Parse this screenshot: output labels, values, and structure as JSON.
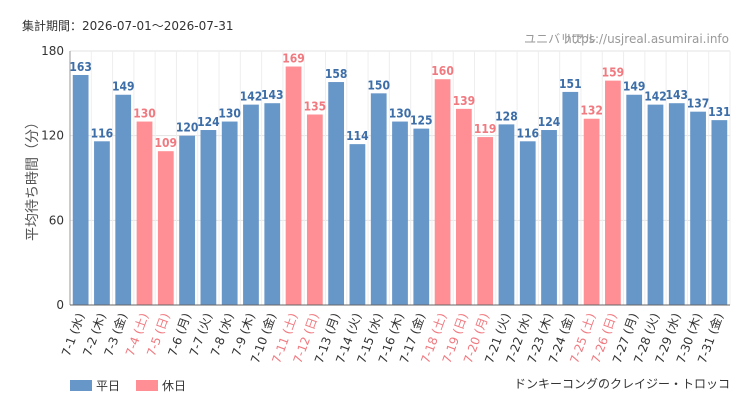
{
  "header": {
    "period": "集計期間：2026-07-01～2026-07-31",
    "site_name": "ユニバリアル",
    "site_url": "https://usjreal.asumirai.info"
  },
  "attraction": "ドンキーコングのクレイジー・トロッコ",
  "colors": {
    "weekday": "#6796c8",
    "holiday": "#ff8f94",
    "holiday_text": "#f07a80",
    "weekday_text": "#3d6ea8"
  },
  "chart_data": {
    "type": "bar",
    "ylabel": "平均待ち時間（分）",
    "ylim": [
      0,
      180
    ],
    "yticks": [
      0,
      60,
      120,
      180
    ],
    "grid": true,
    "legend_position": "bottom-left",
    "legend": [
      {
        "name": "平日",
        "key": "weekday"
      },
      {
        "name": "休日",
        "key": "holiday"
      }
    ],
    "categories": [
      "7-1 (水)",
      "7-2 (木)",
      "7-3 (金)",
      "7-4 (土)",
      "7-5 (日)",
      "7-6 (月)",
      "7-7 (火)",
      "7-8 (水)",
      "7-9 (木)",
      "7-10 (金)",
      "7-11 (土)",
      "7-12 (日)",
      "7-13 (月)",
      "7-14 (火)",
      "7-15 (水)",
      "7-16 (木)",
      "7-17 (金)",
      "7-18 (土)",
      "7-19 (日)",
      "7-20 (月)",
      "7-21 (火)",
      "7-22 (水)",
      "7-23 (木)",
      "7-24 (金)",
      "7-25 (土)",
      "7-26 (日)",
      "7-27 (月)",
      "7-28 (火)",
      "7-29 (水)",
      "7-30 (木)",
      "7-31 (金)"
    ],
    "values": [
      163,
      116,
      149,
      130,
      109,
      120,
      124,
      130,
      142,
      143,
      169,
      135,
      158,
      114,
      150,
      130,
      125,
      160,
      139,
      119,
      128,
      116,
      124,
      151,
      132,
      159,
      149,
      142,
      143,
      137,
      131
    ],
    "day_type": [
      "weekday",
      "weekday",
      "weekday",
      "holiday",
      "holiday",
      "weekday",
      "weekday",
      "weekday",
      "weekday",
      "weekday",
      "holiday",
      "holiday",
      "weekday",
      "weekday",
      "weekday",
      "weekday",
      "weekday",
      "holiday",
      "holiday",
      "holiday",
      "weekday",
      "weekday",
      "weekday",
      "weekday",
      "holiday",
      "holiday",
      "weekday",
      "weekday",
      "weekday",
      "weekday",
      "weekday"
    ]
  }
}
